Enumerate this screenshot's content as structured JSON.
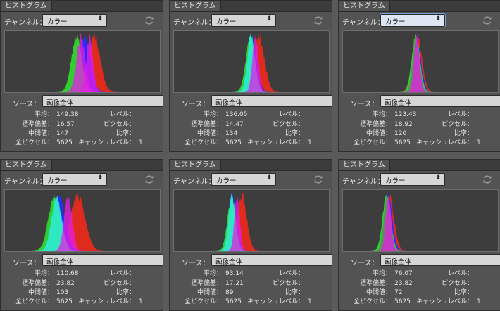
{
  "common": {
    "tab_title": "ヒストグラム",
    "channel_label": "チャンネル：",
    "source_label": "ソース：",
    "source_value": "画像全体",
    "stat_labels": {
      "mean": "平均：",
      "std": "標準偏差：",
      "median": "中間値：",
      "pixels": "全ピクセル："
    },
    "right_labels": {
      "level": "レベル：",
      "pixel": "ピクセル：",
      "ratio": "比率：",
      "cache": "キャッシュレベル："
    },
    "colors": {
      "red": "#e8291c",
      "green": "#2fd62f",
      "blue": "#2a2aff",
      "cyan": "#2ef0f0",
      "magenta": "#e81ce8",
      "gray": "#6e7a6a"
    }
  },
  "panels": [
    {
      "channel_value": "カラー",
      "channel_focused": false,
      "mean": "149.38",
      "std": "16.57",
      "median": "147",
      "pixels": "5625",
      "cache": "1",
      "histogram": {
        "red_center": 147,
        "green_center": 118,
        "blue_center": 132,
        "spread": 10,
        "overlap": "separate"
      }
    },
    {
      "channel_value": "カラー",
      "channel_focused": false,
      "mean": "136.05",
      "std": "14.47",
      "median": "134",
      "pixels": "5625",
      "cache": "1",
      "histogram": {
        "red_center": 140,
        "green_center": 126,
        "blue_center": 128,
        "spread": 9,
        "overlap": "cyan"
      }
    },
    {
      "channel_value": "カラー",
      "channel_focused": true,
      "mean": "123.43",
      "std": "18.92",
      "median": "120",
      "pixels": "5625",
      "cache": "1",
      "histogram": {
        "red_center": 122,
        "green_center": 120,
        "blue_center": 121,
        "spread": 8,
        "overlap": "gray"
      }
    },
    {
      "channel_value": "カラー",
      "channel_focused": false,
      "mean": "110.68",
      "std": "23.82",
      "median": "103",
      "pixels": "5625",
      "cache": "1",
      "histogram": {
        "red_center": 120,
        "green_center": 82,
        "blue_center": 88,
        "spread": 12,
        "overlap": "cyan"
      }
    },
    {
      "channel_value": "カラー",
      "channel_focused": false,
      "mean": "93.14",
      "std": "17.21",
      "median": "89",
      "pixels": "5625",
      "cache": "1",
      "histogram": {
        "red_center": 112,
        "green_center": 95,
        "blue_center": 96,
        "spread": 8,
        "overlap": "cyan"
      }
    },
    {
      "channel_value": "カラー",
      "channel_focused": false,
      "mean": "76.07",
      "std": "23.82",
      "median": "72",
      "pixels": "5625",
      "cache": "1",
      "histogram": {
        "red_center": 76,
        "green_center": 72,
        "blue_center": 74,
        "spread": 8,
        "overlap": "gray"
      }
    }
  ]
}
